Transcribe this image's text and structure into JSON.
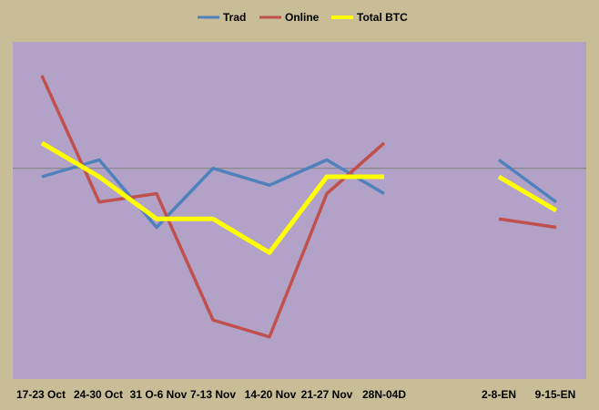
{
  "chart_data": {
    "type": "line",
    "categories": [
      "17-23 Oct",
      "24-30 Oct",
      "31 O-6 Nov",
      "7-13 Nov",
      "14-20 Nov",
      "21-27 Nov",
      "28N-04D",
      "",
      "2-8-EN",
      "9-15-EN"
    ],
    "series": [
      {
        "name": "Trad",
        "color": "#4f81bd",
        "values": [
          -1,
          1,
          -7,
          0,
          -2,
          1,
          -3,
          null,
          1,
          -4
        ]
      },
      {
        "name": "Online",
        "color": "#c0504d",
        "values": [
          11,
          -4,
          -3,
          -18,
          -20,
          -3,
          3,
          null,
          -6,
          -7
        ]
      },
      {
        "name": "Total BTC",
        "color": "#ffff00",
        "values": [
          3,
          -1,
          -6,
          -6,
          -10,
          -1,
          -1,
          null,
          -1,
          -5
        ]
      }
    ],
    "ylim": [
      -25,
      15
    ],
    "reference_line": 0,
    "grid": false,
    "legend_position": "top",
    "plot_background": "#b3a2c7",
    "page_background": "#c8bd96",
    "reference_line_color": "#7f7f7f"
  }
}
